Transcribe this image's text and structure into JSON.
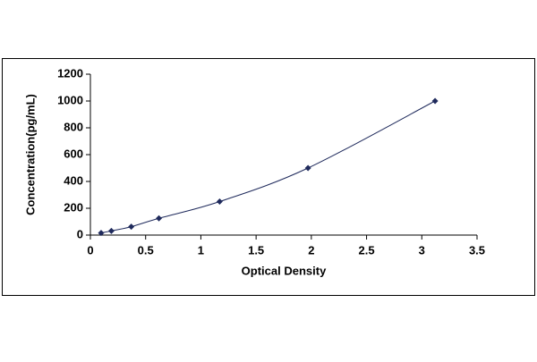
{
  "chart_data": {
    "type": "line",
    "x": [
      0.097,
      0.19,
      0.37,
      0.62,
      1.17,
      1.97,
      3.12
    ],
    "values": [
      15.6,
      31.25,
      62.5,
      125,
      250,
      500,
      1000
    ],
    "color": "#1f2a5c",
    "marker": "diamond",
    "x_label": "Optical Density",
    "y_label": "Concentration(pg/mL)",
    "xlim": [
      0,
      3.5
    ],
    "xticks": [
      0,
      0.5,
      1,
      1.5,
      2,
      2.5,
      3,
      3.5
    ],
    "ylim": [
      0,
      1200
    ],
    "yticks": [
      0,
      200,
      400,
      600,
      800,
      1000,
      1200
    ],
    "grid": false
  }
}
